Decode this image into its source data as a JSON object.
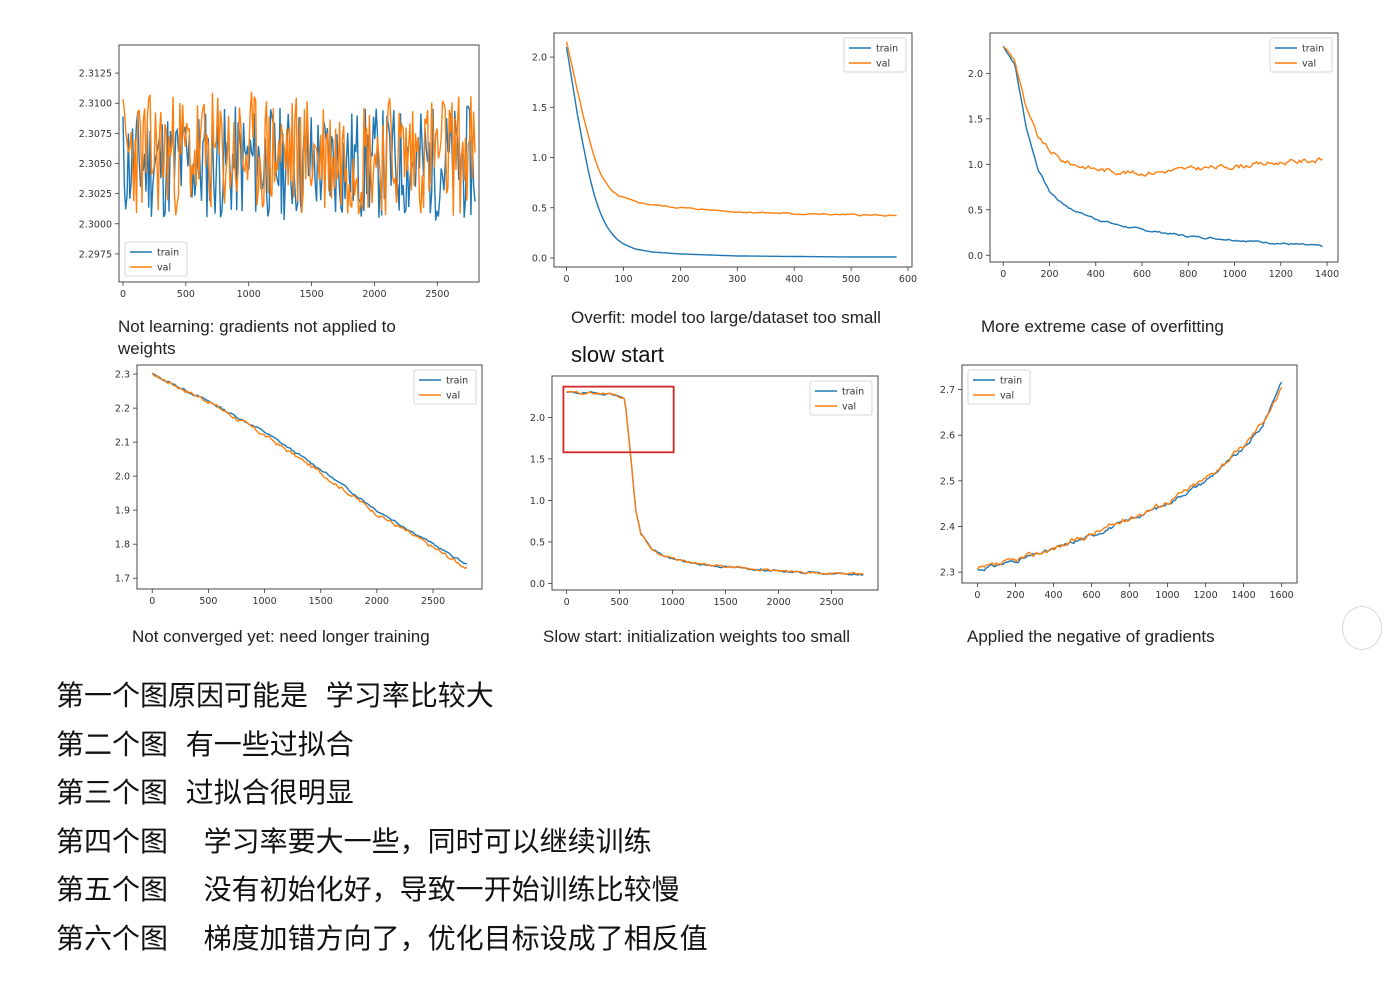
{
  "colors": {
    "train": "#1f77b4",
    "val": "#ff7f0e",
    "highlight": "#d62728",
    "axis": "#333333"
  },
  "chart_data": [
    {
      "type": "line",
      "caption": "Not learning: gradients not applied to weights",
      "xlim": [
        0,
        2800
      ],
      "ylim": [
        2.2955,
        2.3145
      ],
      "xticks": [
        0,
        500,
        1000,
        1500,
        2000,
        2500
      ],
      "yticks": [
        2.2975,
        2.3,
        2.3025,
        2.305,
        2.3075,
        2.31,
        2.3125
      ],
      "ytick_labels": [
        "2.2975",
        "2.3000",
        "2.3025",
        "2.3050",
        "2.3075",
        "2.3100",
        "2.3125"
      ],
      "legend": "bottom-left",
      "series": [
        {
          "name": "train",
          "shape": "noise",
          "x": [
            0,
            2800
          ],
          "y": [
            2.305,
            2.305
          ],
          "amp": 0.0048,
          "seed": 11
        },
        {
          "name": "val",
          "shape": "noise",
          "x": [
            0,
            2800
          ],
          "y": [
            2.3058,
            2.3058
          ],
          "amp": 0.0052,
          "seed": 23
        }
      ]
    },
    {
      "type": "line",
      "caption": "Overfit: model too large/dataset too small",
      "xlim": [
        -15,
        600
      ],
      "ylim": [
        -0.05,
        2.2
      ],
      "xticks": [
        0,
        100,
        200,
        300,
        400,
        500,
        600
      ],
      "yticks": [
        0.0,
        0.5,
        1.0,
        1.5,
        2.0
      ],
      "ytick_labels": [
        "0.0",
        "0.5",
        "1.0",
        "1.5",
        "2.0"
      ],
      "legend": "top-right",
      "series": [
        {
          "name": "train",
          "x": [
            0,
            10,
            20,
            30,
            40,
            50,
            60,
            70,
            80,
            90,
            100,
            120,
            150,
            200,
            250,
            300,
            400,
            500,
            580
          ],
          "y": [
            2.1,
            1.75,
            1.4,
            1.1,
            0.82,
            0.6,
            0.44,
            0.32,
            0.24,
            0.18,
            0.14,
            0.09,
            0.06,
            0.04,
            0.03,
            0.02,
            0.015,
            0.01,
            0.01
          ],
          "amp": 0.0,
          "seed": 3
        },
        {
          "name": "val",
          "x": [
            0,
            10,
            20,
            30,
            40,
            50,
            60,
            70,
            80,
            90,
            100,
            120,
            150,
            200,
            250,
            300,
            400,
            500,
            580
          ],
          "y": [
            2.15,
            1.9,
            1.65,
            1.4,
            1.18,
            0.98,
            0.84,
            0.74,
            0.66,
            0.62,
            0.6,
            0.56,
            0.53,
            0.5,
            0.48,
            0.46,
            0.44,
            0.43,
            0.42
          ],
          "amp": 0.012,
          "seed": 5
        }
      ]
    },
    {
      "type": "line",
      "caption": "More extreme case of overfitting",
      "xlim": [
        -40,
        1430
      ],
      "ylim": [
        -0.03,
        2.4
      ],
      "xticks": [
        0,
        200,
        400,
        600,
        800,
        1000,
        1200,
        1400
      ],
      "yticks": [
        0.0,
        0.5,
        1.0,
        1.5,
        2.0
      ],
      "ytick_labels": [
        "0.0",
        "0.5",
        "1.0",
        "1.5",
        "2.0"
      ],
      "legend": "top-right",
      "series": [
        {
          "name": "train",
          "x": [
            0,
            50,
            100,
            150,
            200,
            250,
            300,
            400,
            500,
            600,
            800,
            1000,
            1200,
            1380
          ],
          "y": [
            2.3,
            2.1,
            1.4,
            0.95,
            0.7,
            0.58,
            0.5,
            0.4,
            0.33,
            0.28,
            0.21,
            0.17,
            0.13,
            0.1
          ],
          "amp": 0.018,
          "seed": 7
        },
        {
          "name": "val",
          "x": [
            0,
            50,
            100,
            150,
            200,
            250,
            300,
            400,
            500,
            600,
            800,
            1000,
            1200,
            1380
          ],
          "y": [
            2.3,
            2.15,
            1.6,
            1.3,
            1.15,
            1.05,
            1.0,
            0.95,
            0.92,
            0.9,
            0.95,
            0.98,
            1.02,
            1.05
          ],
          "amp": 0.045,
          "seed": 9
        }
      ]
    },
    {
      "type": "line",
      "caption": "Not converged yet: need longer training",
      "xlim": [
        -100,
        2900
      ],
      "ylim": [
        1.68,
        2.315
      ],
      "xticks": [
        0,
        500,
        1000,
        1500,
        2000,
        2500
      ],
      "yticks": [
        1.7,
        1.8,
        1.9,
        2.0,
        2.1,
        2.2,
        2.3
      ],
      "ytick_labels": [
        "1.7",
        "1.8",
        "1.9",
        "2.0",
        "2.1",
        "2.2",
        "2.3"
      ],
      "legend": "top-right",
      "series": [
        {
          "name": "train",
          "x": [
            0,
            500,
            1000,
            1500,
            2000,
            2500,
            2800
          ],
          "y": [
            2.3,
            2.22,
            2.13,
            2.02,
            1.9,
            1.8,
            1.74
          ],
          "amp": 0.006,
          "seed": 13
        },
        {
          "name": "val",
          "x": [
            0,
            500,
            1000,
            1500,
            2000,
            2500,
            2800
          ],
          "y": [
            2.3,
            2.22,
            2.12,
            2.01,
            1.89,
            1.79,
            1.73
          ],
          "amp": 0.01,
          "seed": 17
        }
      ]
    },
    {
      "type": "line",
      "caption": "Slow start: initialization weights too small",
      "title": "slow start",
      "xlim": [
        -100,
        2900
      ],
      "ylim": [
        -0.03,
        2.45
      ],
      "xticks": [
        0,
        500,
        1000,
        1500,
        2000,
        2500
      ],
      "yticks": [
        0.0,
        0.5,
        1.0,
        1.5,
        2.0
      ],
      "ytick_labels": [
        "0.0",
        "0.5",
        "1.0",
        "1.5",
        "2.0"
      ],
      "legend": "top-right",
      "series": [
        {
          "name": "train",
          "x": [
            0,
            300,
            450,
            550,
            600,
            650,
            700,
            800,
            900,
            1000,
            1200,
            1500,
            2000,
            2500,
            2800
          ],
          "y": [
            2.3,
            2.29,
            2.28,
            2.22,
            1.6,
            0.9,
            0.6,
            0.42,
            0.34,
            0.3,
            0.24,
            0.2,
            0.15,
            0.12,
            0.11
          ],
          "amp": 0.02,
          "seed": 19
        },
        {
          "name": "val",
          "x": [
            0,
            300,
            450,
            550,
            600,
            650,
            700,
            800,
            900,
            1000,
            1200,
            1500,
            2000,
            2500,
            2800
          ],
          "y": [
            2.3,
            2.29,
            2.28,
            2.22,
            1.6,
            0.9,
            0.6,
            0.42,
            0.34,
            0.3,
            0.24,
            0.2,
            0.15,
            0.12,
            0.11
          ],
          "amp": 0.022,
          "seed": 29
        }
      ],
      "highlight_box": {
        "x": [
          -30,
          1010
        ],
        "y": [
          1.58,
          2.37
        ]
      }
    },
    {
      "type": "line",
      "caption": "Applied the negative of gradients",
      "xlim": [
        -60,
        1660
      ],
      "ylim": [
        2.285,
        2.745
      ],
      "xticks": [
        0,
        200,
        400,
        600,
        800,
        1000,
        1200,
        1400,
        1600
      ],
      "yticks": [
        2.3,
        2.4,
        2.5,
        2.6,
        2.7
      ],
      "ytick_labels": [
        "2.3",
        "2.4",
        "2.5",
        "2.6",
        "2.7"
      ],
      "legend": "top-left",
      "series": [
        {
          "name": "train",
          "x": [
            0,
            200,
            400,
            600,
            800,
            1000,
            1200,
            1400,
            1500,
            1600
          ],
          "y": [
            2.305,
            2.325,
            2.35,
            2.38,
            2.415,
            2.45,
            2.5,
            2.57,
            2.62,
            2.72
          ],
          "amp": 0.007,
          "seed": 31
        },
        {
          "name": "val",
          "x": [
            0,
            200,
            400,
            600,
            800,
            1000,
            1200,
            1400,
            1500,
            1600
          ],
          "y": [
            2.305,
            2.326,
            2.352,
            2.383,
            2.418,
            2.454,
            2.505,
            2.575,
            2.63,
            2.7
          ],
          "amp": 0.01,
          "seed": 37
        }
      ]
    }
  ],
  "notes": [
    "第一个图原因可能是  学习率比较大",
    "第二个图  有一些过拟合",
    "第三个图  过拟合很明显",
    "第四个图    学习率要大一些，同时可以继续训练",
    "第五个图    没有初始化好，导致一开始训练比较慢",
    "第六个图    梯度加错方向了，优化目标设成了相反值"
  ]
}
